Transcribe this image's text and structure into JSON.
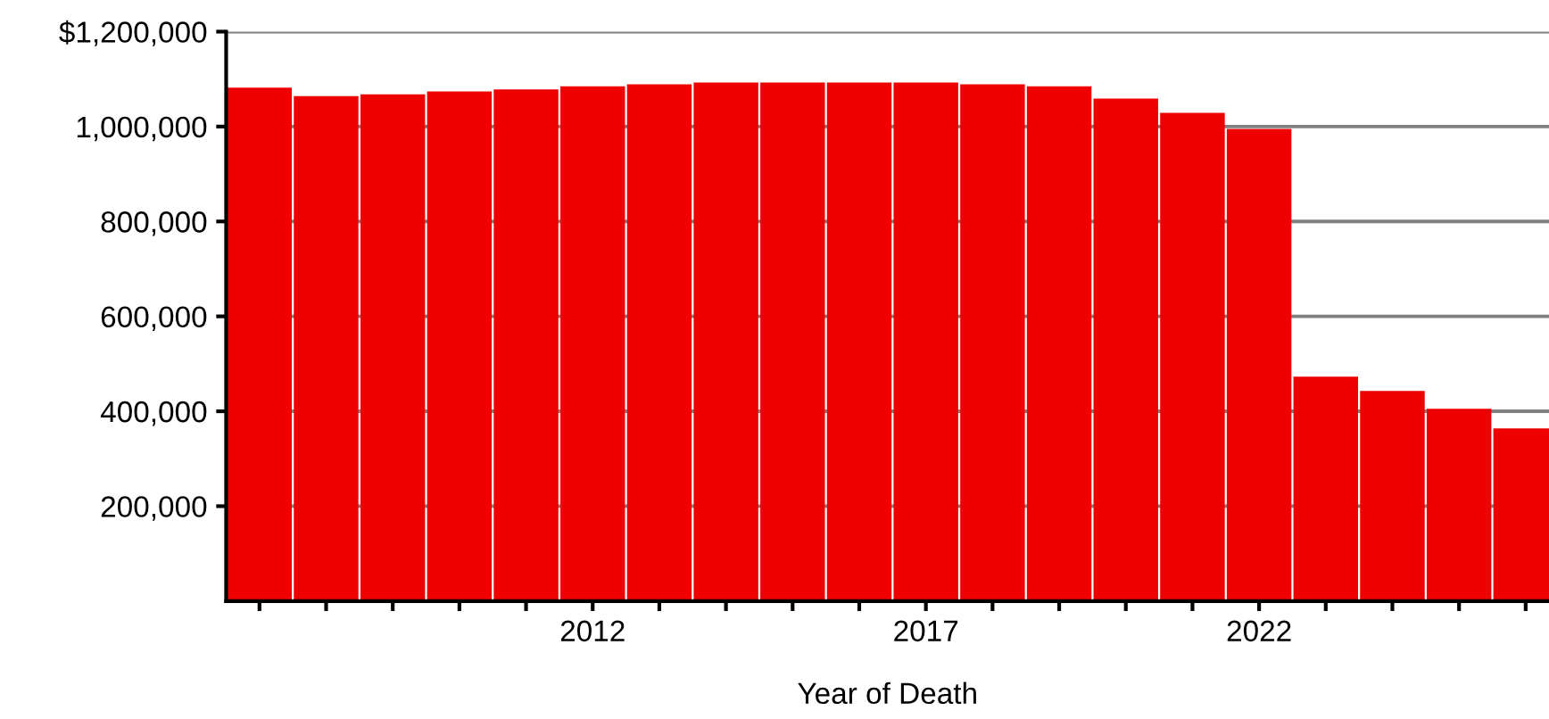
{
  "chart_data": {
    "type": "bar",
    "xlabel": "Year of Death",
    "x": [
      2007,
      2008,
      2009,
      2010,
      2011,
      2012,
      2013,
      2014,
      2015,
      2016,
      2017,
      2018,
      2019,
      2020,
      2021,
      2022,
      2023,
      2024,
      2025,
      2026
    ],
    "series": [
      {
        "color": "#ee0000",
        "values": [
          1082000,
          1064000,
          1068000,
          1074000,
          1078000,
          1085000,
          1089000,
          1093000,
          1093000,
          1093000,
          1093000,
          1089000,
          1085000,
          1059000,
          1029000,
          995000,
          473000,
          443000,
          405000,
          364000
        ]
      }
    ],
    "xlim": [
      2006.5,
      2026.35
    ],
    "xticks": [
      {
        "value": 2007,
        "label": null
      },
      {
        "value": 2008,
        "label": null
      },
      {
        "value": 2009,
        "label": null
      },
      {
        "value": 2010,
        "label": null
      },
      {
        "value": 2011,
        "label": null
      },
      2012,
      {
        "value": 2013,
        "label": null
      },
      {
        "value": 2014,
        "label": null
      },
      {
        "value": 2015,
        "label": null
      },
      {
        "value": 2016,
        "label": null
      },
      2017,
      {
        "value": 2018,
        "label": null
      },
      {
        "value": 2019,
        "label": null
      },
      {
        "value": 2020,
        "label": null
      },
      {
        "value": 2021,
        "label": null
      },
      2022,
      {
        "value": 2023,
        "label": null
      },
      {
        "value": 2024,
        "label": null
      },
      {
        "value": 2025,
        "label": null
      },
      {
        "value": 2026,
        "label": null
      }
    ],
    "ylim": [
      0,
      1200000
    ],
    "yticks": [
      {
        "value": 200000,
        "label": "200,000"
      },
      {
        "value": 400000,
        "label": "400,000"
      },
      {
        "value": 600000,
        "label": "600,000"
      },
      {
        "value": 800000,
        "label": "800,000"
      },
      {
        "value": 1000000,
        "label": "1,000,000"
      },
      {
        "value": 1200000,
        "label": "$1,200,000"
      }
    ],
    "grid": "y"
  }
}
